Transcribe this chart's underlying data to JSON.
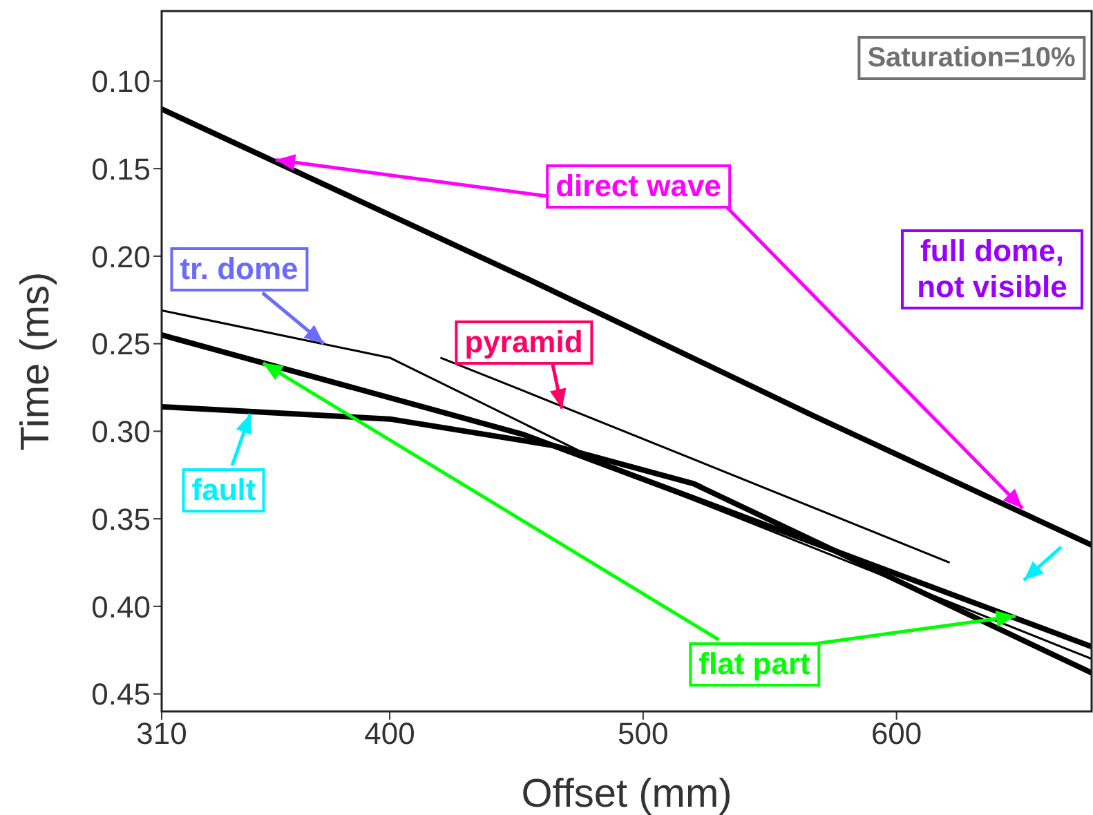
{
  "chart_data": {
    "type": "line",
    "xlabel": "Offset (mm)",
    "ylabel": "Time (ms)",
    "xlim": [
      310,
      677
    ],
    "xticks": [
      310,
      400,
      500,
      600
    ],
    "ylim": [
      0.46,
      0.06
    ],
    "yticks": [
      {
        "value": 0.1,
        "label": "0.10"
      },
      {
        "value": 0.15,
        "label": "0.15"
      },
      {
        "value": 0.2,
        "label": "0.20"
      },
      {
        "value": 0.25,
        "label": "0.25"
      },
      {
        "value": 0.3,
        "label": "0.30"
      },
      {
        "value": 0.35,
        "label": "0.35"
      },
      {
        "value": 0.4,
        "label": "0.40"
      },
      {
        "value": 0.45,
        "label": "0.45"
      }
    ],
    "marker": "none",
    "line_style": "solid",
    "series": [
      {
        "color": "#000000",
        "x": [
          310,
          453,
          567,
          677
        ],
        "values": [
          0.116,
          0.212,
          0.291,
          0.365
        ]
      },
      {
        "color": "#000000",
        "x": [
          310,
          453,
          677
        ],
        "values": [
          0.245,
          0.302,
          0.423
        ]
      },
      {
        "color": "#000000",
        "x": [
          310,
          400,
          464,
          520,
          677
        ],
        "values": [
          0.286,
          0.293,
          0.308,
          0.33,
          0.438
        ]
      },
      {
        "color": "#000000",
        "x": [
          310,
          400,
          490,
          677
        ],
        "values": [
          0.231,
          0.258,
          0.322,
          0.43
        ]
      },
      {
        "color": "#000000",
        "x": [
          420,
          453,
          621
        ],
        "values": [
          0.258,
          0.277,
          0.375
        ]
      }
    ],
    "annotations": [
      "Saturation=10%",
      {
        "text": "direct wave",
        "x": 355,
        "y": 0.145
      },
      {
        "text": "tr. dome",
        "x": 374,
        "y": 0.25
      },
      {
        "text": "pyramid",
        "x": 468,
        "y": 0.287
      },
      "full dome, not visible",
      {
        "text": "fault",
        "x": 345,
        "y": 0.29
      },
      {
        "text": "flat part",
        "x": 350,
        "y": 0.261
      }
    ]
  }
}
